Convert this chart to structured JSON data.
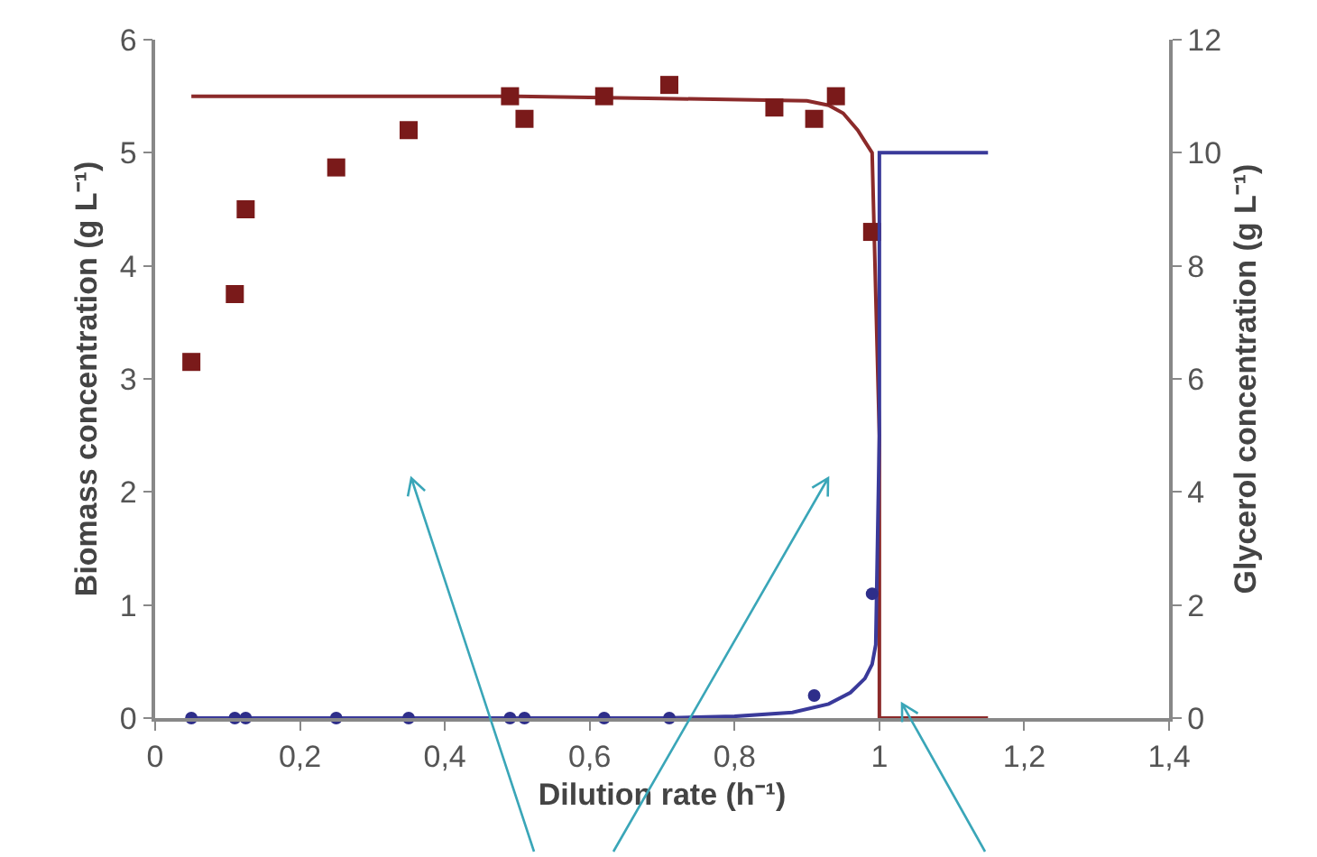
{
  "chart_data": {
    "type": "scatter",
    "xlabel": "Dilution rate (h⁻¹)",
    "ylabel": "Biomass concentration (g L⁻¹)",
    "y2label": "Glycerol concentration (g L⁻¹)",
    "xlim": [
      0,
      1.4
    ],
    "xticks": [
      0,
      {
        "value": 0.2,
        "label": "0,2"
      },
      {
        "value": 0.4,
        "label": "0,4"
      },
      {
        "value": 0.6,
        "label": "0,6"
      },
      {
        "value": 0.8,
        "label": "0,8"
      },
      1,
      {
        "value": 1.2,
        "label": "1,2"
      },
      {
        "value": 1.4,
        "label": "1,4"
      }
    ],
    "ylim": [
      0,
      6
    ],
    "yticks": [
      0,
      1,
      2,
      3,
      4,
      5,
      6
    ],
    "y2lim": [
      0,
      12
    ],
    "y2ticks": [
      0,
      2,
      4,
      6,
      8,
      10,
      12
    ],
    "grid": false,
    "legend": false,
    "series": [
      {
        "type": "line",
        "color": "#8b2a2a",
        "marker": "none",
        "x": [
          0.05,
          0.5,
          0.7,
          0.9,
          0.93,
          0.95,
          0.97,
          0.98,
          0.99,
          1.0,
          1.0,
          1.15
        ],
        "values": [
          5.5,
          5.5,
          5.48,
          5.46,
          5.42,
          5.35,
          5.2,
          5.1,
          5.0,
          2.5,
          0,
          0
        ]
      },
      {
        "type": "line",
        "color": "#3a3a9a",
        "marker": "none",
        "axis": "y2",
        "x": [
          0.05,
          0.7,
          0.8,
          0.88,
          0.93,
          0.96,
          0.98,
          0.99,
          0.995,
          1.0,
          1.0,
          1.15
        ],
        "values": [
          0,
          0,
          0.03,
          0.1,
          0.25,
          0.45,
          0.7,
          0.95,
          1.3,
          5,
          10,
          10
        ]
      },
      {
        "color": "#7a1a1a",
        "marker": "square",
        "x": [
          0.05,
          0.11,
          0.125,
          0.25,
          0.35,
          0.49,
          0.51,
          0.62,
          0.71,
          0.855,
          0.91,
          0.94,
          0.99
        ],
        "values": [
          3.15,
          3.75,
          4.5,
          4.87,
          5.2,
          5.5,
          5.3,
          5.5,
          5.6,
          5.4,
          5.3,
          5.5,
          4.3
        ]
      },
      {
        "color": "#2e2e8a",
        "marker": "circle",
        "axis": "y2",
        "x": [
          0.05,
          0.11,
          0.125,
          0.25,
          0.35,
          0.49,
          0.51,
          0.62,
          0.71,
          0.91,
          0.99
        ],
        "values": [
          0,
          0,
          0,
          0,
          0,
          0,
          0,
          0,
          0,
          0.4,
          2.2
        ]
      }
    ]
  }
}
